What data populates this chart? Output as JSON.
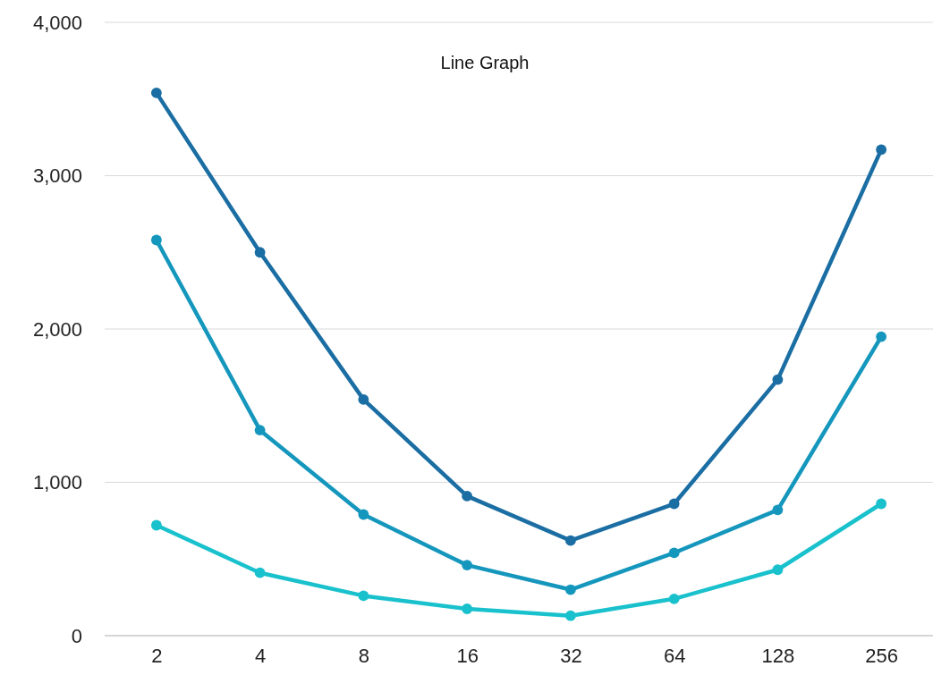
{
  "chart_data": {
    "type": "line",
    "title": "Line Graph",
    "categories": [
      "2",
      "4",
      "8",
      "16",
      "32",
      "64",
      "128",
      "256"
    ],
    "series": [
      {
        "color": "#1b6ea3",
        "values": [
          3540,
          2500,
          1540,
          910,
          620,
          860,
          1670,
          3170
        ]
      },
      {
        "color": "#1597bd",
        "values": [
          2580,
          1340,
          790,
          460,
          300,
          540,
          820,
          1950
        ]
      },
      {
        "color": "#19c1cd",
        "values": [
          720,
          410,
          260,
          175,
          130,
          240,
          430,
          860
        ]
      }
    ],
    "ylim": [
      0,
      4000
    ],
    "yticks": [
      {
        "value": 0,
        "label": "0"
      },
      {
        "value": 1000,
        "label": "1,000"
      },
      {
        "value": 2000,
        "label": "2,000"
      },
      {
        "value": 3000,
        "label": "3,000"
      },
      {
        "value": 4000,
        "label": "4,000"
      }
    ],
    "grid": "y",
    "marker": "circle",
    "line_style": "solid"
  }
}
